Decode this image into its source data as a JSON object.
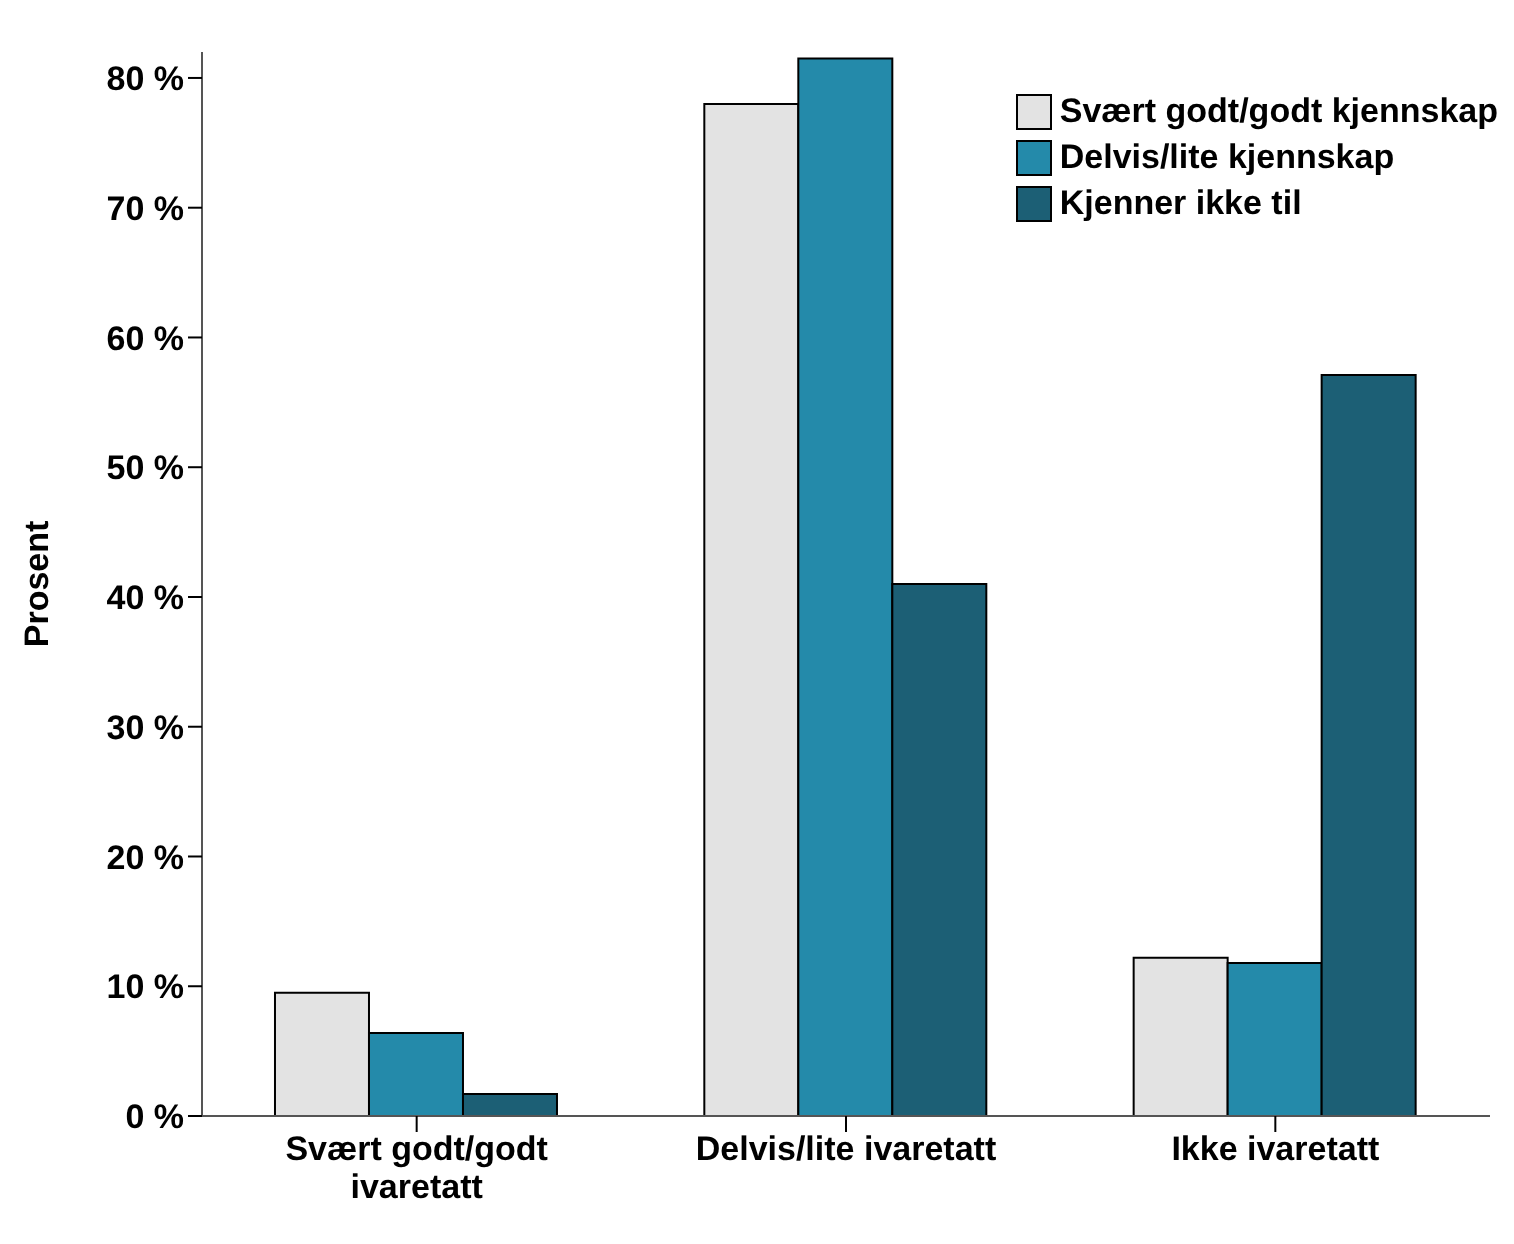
{
  "chart_data": {
    "type": "bar",
    "ylabel": "Prosent",
    "categories": [
      "Svært godt/godt ivaretatt",
      "Delvis/lite ivaretatt",
      "Ikke ivaretatt"
    ],
    "series": [
      {
        "name": "Svært godt/godt kjennskap",
        "color": "#e3e3e3",
        "values": [
          9.5,
          78.0,
          12.2
        ]
      },
      {
        "name": "Delvis/lite kjennskap",
        "color": "#248aaa",
        "values": [
          6.4,
          81.5,
          11.8
        ]
      },
      {
        "name": "Kjenner ikke til",
        "color": "#1c5f75",
        "values": [
          1.7,
          41.0,
          57.1
        ]
      }
    ],
    "ylim": [
      0,
      82
    ],
    "yticks": [
      {
        "value": 0,
        "label": "0 %"
      },
      {
        "value": 10,
        "label": "10 %"
      },
      {
        "value": 20,
        "label": "20 %"
      },
      {
        "value": 30,
        "label": "30 %"
      },
      {
        "value": 40,
        "label": "40 %"
      },
      {
        "value": 50,
        "label": "50 %"
      },
      {
        "value": 60,
        "label": "60 %"
      },
      {
        "value": 70,
        "label": "70 %"
      },
      {
        "value": 80,
        "label": "80 %"
      }
    ],
    "grid": false,
    "legend": "top right"
  }
}
